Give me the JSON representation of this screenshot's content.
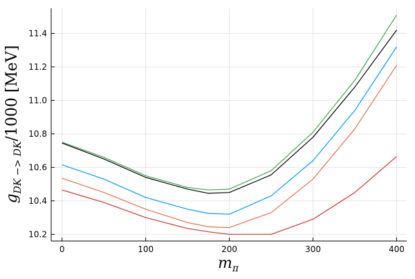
{
  "chart_data": {
    "type": "line",
    "x_label": "m",
    "x_label_sub": "π",
    "y_label": "g",
    "y_label_sub": "DK −> DK",
    "y_label_rest": "/1000 [MeV]",
    "x": [
      0,
      50,
      100,
      150,
      175,
      200,
      250,
      300,
      350,
      400
    ],
    "series": [
      {
        "color": "#3da44d",
        "values": [
          10.75,
          10.66,
          10.55,
          10.48,
          10.465,
          10.47,
          10.58,
          10.81,
          11.12,
          11.51
        ]
      },
      {
        "color": "#000000",
        "values": [
          10.745,
          10.65,
          10.54,
          10.47,
          10.445,
          10.45,
          10.555,
          10.78,
          11.08,
          11.42
        ]
      },
      {
        "color": "#009af9",
        "values": [
          10.615,
          10.53,
          10.42,
          10.35,
          10.325,
          10.32,
          10.43,
          10.64,
          10.94,
          11.32
        ]
      },
      {
        "color": "#e26f46",
        "values": [
          10.535,
          10.45,
          10.35,
          10.27,
          10.245,
          10.24,
          10.33,
          10.53,
          10.83,
          11.21
        ]
      },
      {
        "color": "#cc3333",
        "values": [
          10.465,
          10.39,
          10.3,
          10.235,
          10.215,
          10.2,
          10.2,
          10.29,
          10.45,
          10.665
        ]
      }
    ],
    "xlim": [
      -13,
      412
    ],
    "xticks": [
      0,
      100,
      200,
      300,
      400
    ],
    "ylim": [
      10.16,
      11.55
    ],
    "yticks": [
      10.2,
      10.4,
      10.6,
      10.8,
      {
        "value": 11,
        "label": "11.0"
      },
      11.2,
      11.4
    ],
    "grid": true
  }
}
